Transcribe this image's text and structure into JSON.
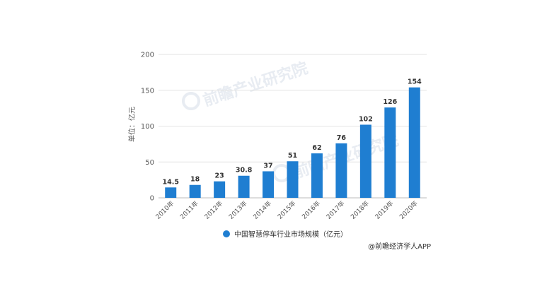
{
  "chart_data": {
    "type": "bar",
    "categories": [
      "2010年",
      "2011年",
      "2012年",
      "2013年",
      "2014年",
      "2015年",
      "2016年",
      "2017年",
      "2018年",
      "2019年",
      "2020年"
    ],
    "series": [
      {
        "name": "中国智慧停车行业市场规模（亿元）",
        "values": [
          14.5,
          18,
          23,
          30.8,
          37,
          51,
          62,
          76,
          102,
          126,
          154
        ],
        "color": "#1f7ed1"
      }
    ],
    "data_labels": [
      "14.5",
      "18",
      "23",
      "30.8",
      "37",
      "51",
      "62",
      "76",
      "102",
      "126",
      "154"
    ],
    "ylabel": "单位：亿元",
    "ylim": [
      0,
      200
    ],
    "yticks": [
      0,
      50,
      100,
      150,
      200
    ],
    "ytick_labels": [
      "0",
      "50",
      "100",
      "150",
      "200"
    ],
    "grid": true,
    "legend_position": "bottom"
  },
  "source": "@前瞻经济学人APP",
  "watermark": "前瞻产业研究院"
}
